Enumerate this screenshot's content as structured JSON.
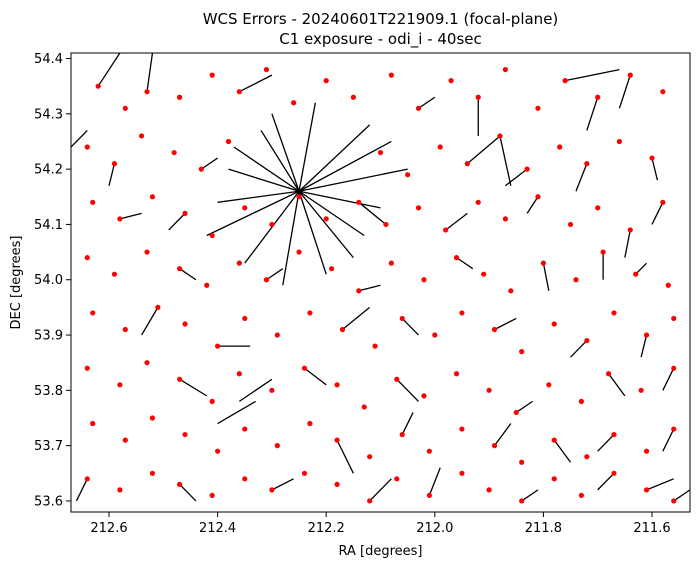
{
  "chart_data": {
    "type": "scatter",
    "title": "WCS Errors - 20240601T221909.1 (focal-plane)",
    "subtitle": "C1 exposure - odi_i - 40sec",
    "xlabel": "RA [degrees]",
    "ylabel": "DEC [degrees]",
    "xlim": [
      212.67,
      211.53
    ],
    "ylim": [
      53.58,
      54.41
    ],
    "x_ticks": [
      212.6,
      212.4,
      212.2,
      212.0,
      211.8,
      211.6
    ],
    "x_tick_labels": [
      "212.6",
      "212.4",
      "212.2",
      "212.0",
      "211.8",
      "211.6"
    ],
    "y_ticks": [
      53.6,
      53.7,
      53.8,
      53.9,
      54.0,
      54.1,
      54.2,
      54.3,
      54.4
    ],
    "y_tick_labels": [
      "53.6",
      "53.7",
      "53.8",
      "53.9",
      "54.0",
      "54.1",
      "54.2",
      "54.3",
      "54.4"
    ],
    "grid": false,
    "colors": {
      "points": "#ff0000",
      "vectors": "#000000"
    },
    "series": [
      {
        "points": [
          [
            212.62,
            54.35
          ],
          [
            212.57,
            54.31
          ],
          [
            212.53,
            54.34
          ],
          [
            212.47,
            54.33
          ],
          [
            212.41,
            54.37
          ],
          [
            212.36,
            54.34
          ],
          [
            212.31,
            54.38
          ],
          [
            212.26,
            54.32
          ],
          [
            212.2,
            54.36
          ],
          [
            212.15,
            54.33
          ],
          [
            212.08,
            54.37
          ],
          [
            212.03,
            54.31
          ],
          [
            211.97,
            54.36
          ],
          [
            211.92,
            54.33
          ],
          [
            211.87,
            54.38
          ],
          [
            211.81,
            54.31
          ],
          [
            211.76,
            54.36
          ],
          [
            211.7,
            54.33
          ],
          [
            211.64,
            54.37
          ],
          [
            211.58,
            54.34
          ],
          [
            212.64,
            54.24
          ],
          [
            212.59,
            54.21
          ],
          [
            212.54,
            54.26
          ],
          [
            212.48,
            54.23
          ],
          [
            212.43,
            54.2
          ],
          [
            212.38,
            54.25
          ],
          [
            212.1,
            54.23
          ],
          [
            212.05,
            54.19
          ],
          [
            211.99,
            54.24
          ],
          [
            211.94,
            54.21
          ],
          [
            211.88,
            54.26
          ],
          [
            211.83,
            54.2
          ],
          [
            211.77,
            54.24
          ],
          [
            211.72,
            54.21
          ],
          [
            211.66,
            54.25
          ],
          [
            211.6,
            54.22
          ],
          [
            212.63,
            54.14
          ],
          [
            212.58,
            54.11
          ],
          [
            212.52,
            54.15
          ],
          [
            212.46,
            54.12
          ],
          [
            212.41,
            54.08
          ],
          [
            212.35,
            54.13
          ],
          [
            212.3,
            54.1
          ],
          [
            212.25,
            54.15
          ],
          [
            212.2,
            54.11
          ],
          [
            212.14,
            54.14
          ],
          [
            212.09,
            54.1
          ],
          [
            212.03,
            54.13
          ],
          [
            211.98,
            54.09
          ],
          [
            211.92,
            54.14
          ],
          [
            211.87,
            54.11
          ],
          [
            211.81,
            54.15
          ],
          [
            211.75,
            54.1
          ],
          [
            211.7,
            54.13
          ],
          [
            211.64,
            54.09
          ],
          [
            211.58,
            54.14
          ],
          [
            212.64,
            54.04
          ],
          [
            212.59,
            54.01
          ],
          [
            212.53,
            54.05
          ],
          [
            212.47,
            54.02
          ],
          [
            212.42,
            53.99
          ],
          [
            212.36,
            54.03
          ],
          [
            212.31,
            54.0
          ],
          [
            212.25,
            54.05
          ],
          [
            212.19,
            54.02
          ],
          [
            212.14,
            53.98
          ],
          [
            212.08,
            54.03
          ],
          [
            212.02,
            54.0
          ],
          [
            211.96,
            54.04
          ],
          [
            211.91,
            54.01
          ],
          [
            211.86,
            53.98
          ],
          [
            211.8,
            54.03
          ],
          [
            211.74,
            54.0
          ],
          [
            211.69,
            54.05
          ],
          [
            211.63,
            54.01
          ],
          [
            211.57,
            53.99
          ],
          [
            212.63,
            53.94
          ],
          [
            212.57,
            53.91
          ],
          [
            212.51,
            53.95
          ],
          [
            212.46,
            53.92
          ],
          [
            212.4,
            53.88
          ],
          [
            212.35,
            53.93
          ],
          [
            212.29,
            53.9
          ],
          [
            212.23,
            53.94
          ],
          [
            212.17,
            53.91
          ],
          [
            212.11,
            53.88
          ],
          [
            212.06,
            53.93
          ],
          [
            212.0,
            53.9
          ],
          [
            211.95,
            53.94
          ],
          [
            211.89,
            53.91
          ],
          [
            211.84,
            53.87
          ],
          [
            211.78,
            53.92
          ],
          [
            211.72,
            53.89
          ],
          [
            211.67,
            53.94
          ],
          [
            211.61,
            53.9
          ],
          [
            211.56,
            53.93
          ],
          [
            212.64,
            53.84
          ],
          [
            212.58,
            53.81
          ],
          [
            212.53,
            53.85
          ],
          [
            212.47,
            53.82
          ],
          [
            212.41,
            53.78
          ],
          [
            212.36,
            53.83
          ],
          [
            212.3,
            53.8
          ],
          [
            212.24,
            53.84
          ],
          [
            212.18,
            53.81
          ],
          [
            212.13,
            53.77
          ],
          [
            212.07,
            53.82
          ],
          [
            212.02,
            53.79
          ],
          [
            211.96,
            53.83
          ],
          [
            211.9,
            53.8
          ],
          [
            211.85,
            53.76
          ],
          [
            211.79,
            53.81
          ],
          [
            211.73,
            53.78
          ],
          [
            211.68,
            53.83
          ],
          [
            211.62,
            53.8
          ],
          [
            211.56,
            53.84
          ],
          [
            212.63,
            53.74
          ],
          [
            212.57,
            53.71
          ],
          [
            212.52,
            53.75
          ],
          [
            212.46,
            53.72
          ],
          [
            212.4,
            53.69
          ],
          [
            212.35,
            53.73
          ],
          [
            212.29,
            53.7
          ],
          [
            212.23,
            53.74
          ],
          [
            212.18,
            53.71
          ],
          [
            212.12,
            53.68
          ],
          [
            212.06,
            53.72
          ],
          [
            212.01,
            53.69
          ],
          [
            211.95,
            53.73
          ],
          [
            211.89,
            53.7
          ],
          [
            211.84,
            53.67
          ],
          [
            211.78,
            53.71
          ],
          [
            211.72,
            53.68
          ],
          [
            211.67,
            53.72
          ],
          [
            211.61,
            53.69
          ],
          [
            211.56,
            53.73
          ],
          [
            212.64,
            53.64
          ],
          [
            212.58,
            53.62
          ],
          [
            212.52,
            53.65
          ],
          [
            212.47,
            53.63
          ],
          [
            212.41,
            53.61
          ],
          [
            212.35,
            53.64
          ],
          [
            212.3,
            53.62
          ],
          [
            212.24,
            53.65
          ],
          [
            212.18,
            53.63
          ],
          [
            212.12,
            53.6
          ],
          [
            212.07,
            53.64
          ],
          [
            212.01,
            53.61
          ],
          [
            211.95,
            53.65
          ],
          [
            211.9,
            53.62
          ],
          [
            211.84,
            53.6
          ],
          [
            211.78,
            53.64
          ],
          [
            211.73,
            53.61
          ],
          [
            211.67,
            53.65
          ],
          [
            211.61,
            53.62
          ],
          [
            211.56,
            53.6
          ]
        ],
        "vectors": [
          [
            212.25,
            54.16,
            212.12,
            54.28
          ],
          [
            212.25,
            54.16,
            212.35,
            54.03
          ],
          [
            212.25,
            54.16,
            212.1,
            54.13
          ],
          [
            212.25,
            54.16,
            212.38,
            54.2
          ],
          [
            212.25,
            54.16,
            212.2,
            54.01
          ],
          [
            212.25,
            54.16,
            212.3,
            54.3
          ],
          [
            212.25,
            54.16,
            212.05,
            54.2
          ],
          [
            212.25,
            54.16,
            212.42,
            54.08
          ],
          [
            212.25,
            54.16,
            212.15,
            54.04
          ],
          [
            212.25,
            54.16,
            212.32,
            54.27
          ],
          [
            212.25,
            54.16,
            212.08,
            54.25
          ],
          [
            212.25,
            54.16,
            212.4,
            54.14
          ],
          [
            212.25,
            54.16,
            212.22,
            54.32
          ],
          [
            212.25,
            54.16,
            212.28,
            53.99
          ],
          [
            212.25,
            54.16,
            212.13,
            54.08
          ],
          [
            212.25,
            54.16,
            212.37,
            54.24
          ],
          [
            212.62,
            54.35,
            212.58,
            54.41
          ],
          [
            212.53,
            54.34,
            212.52,
            54.41
          ],
          [
            212.36,
            54.34,
            212.3,
            54.37
          ],
          [
            212.03,
            54.31,
            212.0,
            54.33
          ],
          [
            211.92,
            54.33,
            211.92,
            54.26
          ],
          [
            211.76,
            54.36,
            211.66,
            54.38
          ],
          [
            211.7,
            54.33,
            211.72,
            54.27
          ],
          [
            211.64,
            54.37,
            211.66,
            54.31
          ],
          [
            212.59,
            54.21,
            212.6,
            54.17
          ],
          [
            212.43,
            54.2,
            212.4,
            54.22
          ],
          [
            211.94,
            54.21,
            211.88,
            54.26
          ],
          [
            211.88,
            54.26,
            211.86,
            54.17
          ],
          [
            211.83,
            54.2,
            211.87,
            54.17
          ],
          [
            211.72,
            54.21,
            211.74,
            54.16
          ],
          [
            211.6,
            54.22,
            211.59,
            54.18
          ],
          [
            212.67,
            54.24,
            212.64,
            54.27
          ],
          [
            212.58,
            54.11,
            212.54,
            54.12
          ],
          [
            212.46,
            54.12,
            212.49,
            54.09
          ],
          [
            212.14,
            54.14,
            212.09,
            54.1
          ],
          [
            211.98,
            54.09,
            211.94,
            54.12
          ],
          [
            211.81,
            54.15,
            211.83,
            54.12
          ],
          [
            211.64,
            54.09,
            211.65,
            54.04
          ],
          [
            211.58,
            54.14,
            211.6,
            54.1
          ],
          [
            212.47,
            54.02,
            212.44,
            54.0
          ],
          [
            212.31,
            54.0,
            212.28,
            54.02
          ],
          [
            212.14,
            53.98,
            212.1,
            53.99
          ],
          [
            211.96,
            54.04,
            211.93,
            54.02
          ],
          [
            211.8,
            54.03,
            211.79,
            53.98
          ],
          [
            211.69,
            54.05,
            211.69,
            54.0
          ],
          [
            211.63,
            54.01,
            211.61,
            54.03
          ],
          [
            212.51,
            53.95,
            212.54,
            53.9
          ],
          [
            212.4,
            53.88,
            212.34,
            53.88
          ],
          [
            212.17,
            53.91,
            212.12,
            53.95
          ],
          [
            212.06,
            53.93,
            212.03,
            53.9
          ],
          [
            211.89,
            53.91,
            211.85,
            53.93
          ],
          [
            211.72,
            53.89,
            211.75,
            53.86
          ],
          [
            211.61,
            53.9,
            211.62,
            53.86
          ],
          [
            212.47,
            53.82,
            212.42,
            53.79
          ],
          [
            212.36,
            53.78,
            212.3,
            53.82
          ],
          [
            212.24,
            53.84,
            212.2,
            53.81
          ],
          [
            212.07,
            53.82,
            212.03,
            53.78
          ],
          [
            211.85,
            53.76,
            211.82,
            53.78
          ],
          [
            211.68,
            53.83,
            211.65,
            53.79
          ],
          [
            211.56,
            53.84,
            211.58,
            53.8
          ],
          [
            212.4,
            53.74,
            212.33,
            53.78
          ],
          [
            212.18,
            53.71,
            212.15,
            53.65
          ],
          [
            212.06,
            53.72,
            212.04,
            53.76
          ],
          [
            211.89,
            53.7,
            211.86,
            53.74
          ],
          [
            211.78,
            53.71,
            211.75,
            53.67
          ],
          [
            211.67,
            53.72,
            211.7,
            53.69
          ],
          [
            211.56,
            53.73,
            211.58,
            53.69
          ],
          [
            212.64,
            53.64,
            212.66,
            53.6
          ],
          [
            212.47,
            53.63,
            212.44,
            53.6
          ],
          [
            212.3,
            53.62,
            212.26,
            53.64
          ],
          [
            212.12,
            53.6,
            212.08,
            53.64
          ],
          [
            212.01,
            53.61,
            211.99,
            53.66
          ],
          [
            211.84,
            53.6,
            211.81,
            53.62
          ],
          [
            211.67,
            53.65,
            211.7,
            53.62
          ],
          [
            211.61,
            53.62,
            211.56,
            53.64
          ],
          [
            211.56,
            53.6,
            211.53,
            53.62
          ]
        ]
      }
    ]
  }
}
